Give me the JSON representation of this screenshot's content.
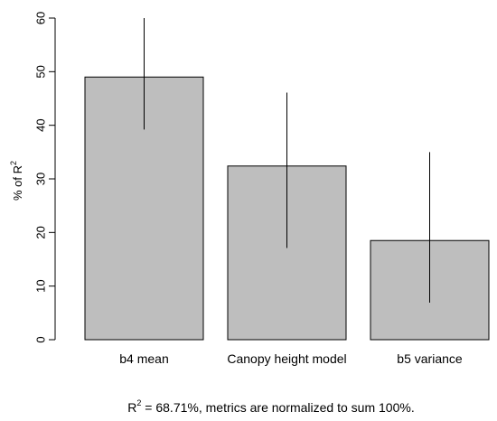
{
  "chart_data": {
    "type": "bar",
    "categories": [
      "b4 mean",
      "Canopy height model",
      "b5 variance"
    ],
    "values": [
      49.0,
      32.4,
      18.5
    ],
    "error_bars": {
      "lower": [
        39.2,
        17.1,
        6.9
      ],
      "upper": [
        60.0,
        46.1,
        35.0
      ]
    },
    "ylabel_prefix": "% of R",
    "ylabel_superscript": "2",
    "y_ticks": [
      0,
      10,
      20,
      30,
      40,
      50,
      60
    ],
    "ylim": [
      0,
      60
    ],
    "caption_prefix": "R",
    "caption_superscript": "2",
    "caption_rest": " = 68.71%, metrics are normalized to sum 100%.",
    "bar_color": "#bebebe",
    "grid": false
  }
}
